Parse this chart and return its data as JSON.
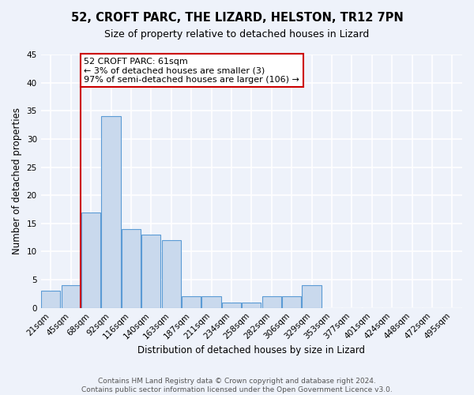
{
  "title": "52, CROFT PARC, THE LIZARD, HELSTON, TR12 7PN",
  "subtitle": "Size of property relative to detached houses in Lizard",
  "xlabel": "Distribution of detached houses by size in Lizard",
  "ylabel": "Number of detached properties",
  "bar_labels": [
    "21sqm",
    "45sqm",
    "68sqm",
    "92sqm",
    "116sqm",
    "140sqm",
    "163sqm",
    "187sqm",
    "211sqm",
    "234sqm",
    "258sqm",
    "282sqm",
    "306sqm",
    "329sqm",
    "353sqm",
    "377sqm",
    "401sqm",
    "424sqm",
    "448sqm",
    "472sqm",
    "495sqm"
  ],
  "bar_values": [
    3,
    4,
    17,
    34,
    14,
    13,
    12,
    2,
    2,
    1,
    1,
    2,
    2,
    4,
    0,
    0,
    0,
    0,
    0,
    0,
    0
  ],
  "bar_color": "#c9d9ed",
  "bar_edge_color": "#5b9bd5",
  "vertical_line_index": 2,
  "annotation_text": "52 CROFT PARC: 61sqm\n← 3% of detached houses are smaller (3)\n97% of semi-detached houses are larger (106) →",
  "annotation_box_color": "white",
  "annotation_box_edge_color": "#cc0000",
  "vertical_line_color": "#cc0000",
  "ylim": [
    0,
    45
  ],
  "yticks": [
    0,
    5,
    10,
    15,
    20,
    25,
    30,
    35,
    40,
    45
  ],
  "footer_line1": "Contains HM Land Registry data © Crown copyright and database right 2024.",
  "footer_line2": "Contains public sector information licensed under the Open Government Licence v3.0.",
  "background_color": "#eef2fa",
  "grid_color": "white",
  "title_fontsize": 10.5,
  "subtitle_fontsize": 9,
  "axis_label_fontsize": 8.5,
  "tick_fontsize": 7.5,
  "annotation_fontsize": 8,
  "footer_fontsize": 6.5
}
